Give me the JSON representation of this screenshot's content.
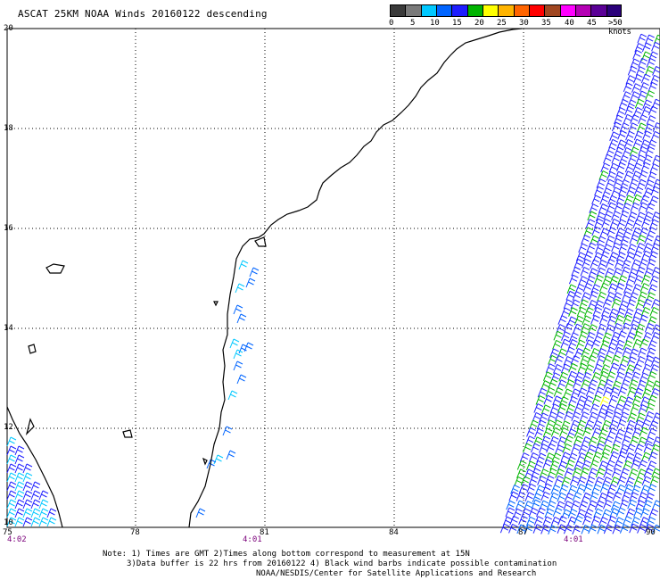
{
  "title": "ASCAT 25KM NOAA Winds 20160122 descending",
  "scale": {
    "colors": [
      "#3a3a3a",
      "#7a7a7a",
      "#00c8ff",
      "#0064ff",
      "#1e1eff",
      "#00b400",
      "#ffff00",
      "#ffb400",
      "#ff6400",
      "#ff0000",
      "#a04620",
      "#ff00ff",
      "#b400b4",
      "#5a0096",
      "#2a007a"
    ],
    "labels": [
      "0",
      "5",
      "10",
      "15",
      "20",
      "25",
      "30",
      "35",
      "40",
      "45",
      ">50 knots"
    ]
  },
  "axes": {
    "y_labels": [
      "20",
      "18",
      "16",
      "14",
      "12",
      "10"
    ],
    "x_labels": [
      "75",
      "78",
      "81",
      "84",
      "87",
      "90"
    ]
  },
  "times": [
    "4:02",
    "4:01",
    "4:01"
  ],
  "note": {
    "line1": "Note: 1) Times are GMT 2)Times along bottom correspond to measurement at 15N",
    "line2": "3)Data buffer is 22 hrs from 20160122 4) Black wind barbs indicate possible contamination",
    "line3": "NOAA/NESDIS/Center for Satellite Applications and Research"
  }
}
